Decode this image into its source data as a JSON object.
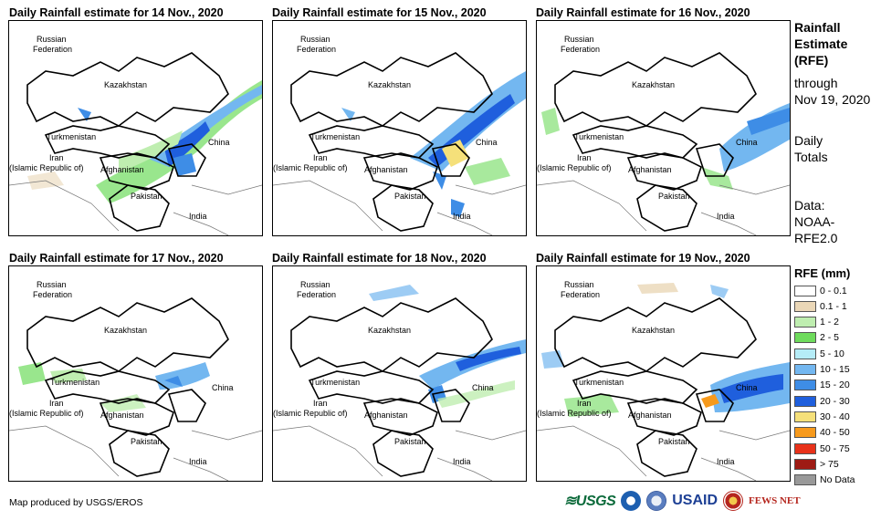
{
  "panels": [
    {
      "title": "Daily Rainfall estimate for 14 Nov., 2020"
    },
    {
      "title": "Daily Rainfall estimate for 15 Nov., 2020"
    },
    {
      "title": "Daily Rainfall estimate for 16 Nov., 2020"
    },
    {
      "title": "Daily Rainfall estimate for 17 Nov., 2020"
    },
    {
      "title": "Daily Rainfall estimate for 18 Nov., 2020"
    },
    {
      "title": "Daily Rainfall estimate for 19 Nov., 2020"
    }
  ],
  "countries": {
    "russia_1": "Russian",
    "russia_2": "Federation",
    "kazakhstan": "Kazakhstan",
    "turkmenistan": "Turkmenistan",
    "iran_1": "Iran",
    "iran_2": "(Islamic Republic of)",
    "afghanistan": "Afghanistan",
    "pakistan": "Pakistan",
    "china": "China",
    "india": "India"
  },
  "sidebar": {
    "title_1": "Rainfall",
    "title_2": "Estimate",
    "title_3": "(RFE)",
    "through_1": "through",
    "through_2": "Nov 19, 2020",
    "totals_1": "Daily",
    "totals_2": "Totals",
    "data_1": "Data:",
    "data_2": "NOAA-",
    "data_3": "RFE2.0"
  },
  "legend": {
    "title": "RFE (mm)",
    "items": [
      {
        "label": "0 - 0.1",
        "color": "#ffffff"
      },
      {
        "label": "0.1 - 1",
        "color": "#ead7b7"
      },
      {
        "label": "1 - 2",
        "color": "#bfeeb0"
      },
      {
        "label": "2 - 5",
        "color": "#6edb5c"
      },
      {
        "label": "5 - 10",
        "color": "#b5ecf7"
      },
      {
        "label": "10 - 15",
        "color": "#73b7f0"
      },
      {
        "label": "15 - 20",
        "color": "#3e8de6"
      },
      {
        "label": "20 - 30",
        "color": "#1f5fdd"
      },
      {
        "label": "30 - 40",
        "color": "#f5e07a"
      },
      {
        "label": "40 - 50",
        "color": "#f79a1c"
      },
      {
        "label": "50 - 75",
        "color": "#e8321a"
      },
      {
        "label": "> 75",
        "color": "#9e1b14"
      },
      {
        "label": "No Data",
        "color": "#999999"
      }
    ]
  },
  "footer": {
    "credit": "Map produced by USGS/EROS"
  },
  "logos": {
    "usgs": "≋USGS",
    "usaid": "USAID",
    "fews": "FEWS NET"
  }
}
